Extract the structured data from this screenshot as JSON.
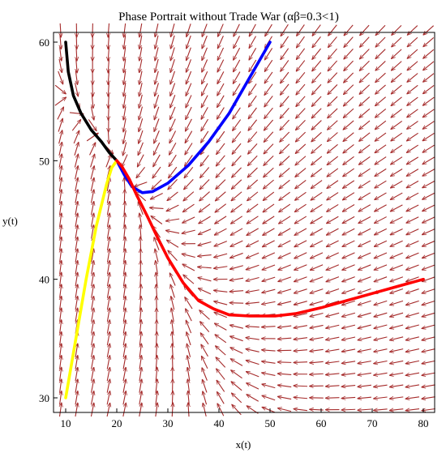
{
  "chart_data": {
    "type": "line",
    "title": "Phase Portrait without Trade War (αβ=0.3<1)",
    "xlabel": "x(t)",
    "ylabel": "y(t)",
    "xlim": [
      10,
      80
    ],
    "ylim": [
      30,
      60
    ],
    "x_ticks": [
      10,
      20,
      30,
      40,
      50,
      60,
      70,
      80
    ],
    "y_ticks": [
      30,
      40,
      50,
      60
    ],
    "grid": false,
    "equilibrium": [
      20,
      50
    ],
    "vector_field": {
      "color": "#a52a2a",
      "x_range": [
        9,
        81
      ],
      "y_range": [
        29,
        61
      ],
      "nx": 24,
      "ny": 33,
      "model": "dx/dt = 0.5x(1 - (x + 0.6y)/50), dy/dt = 0.5y(1 - (y + 0.5x)/60)"
    },
    "series": [
      {
        "color": "#000000",
        "points": [
          [
            10,
            60
          ],
          [
            10.5,
            57.5
          ],
          [
            11.5,
            55.5
          ],
          [
            13,
            54
          ],
          [
            15,
            52.6
          ],
          [
            17,
            51.6
          ],
          [
            18.5,
            50.7
          ],
          [
            20,
            50
          ]
        ]
      },
      {
        "color": "#0000ff",
        "points": [
          [
            50,
            60
          ],
          [
            46,
            57
          ],
          [
            42,
            54
          ],
          [
            38,
            51.6
          ],
          [
            34,
            49.6
          ],
          [
            30,
            48.1
          ],
          [
            27,
            47.4
          ],
          [
            25,
            47.3
          ],
          [
            23,
            47.8
          ],
          [
            21.5,
            48.8
          ],
          [
            20,
            50
          ]
        ]
      },
      {
        "color": "#ffff00",
        "points": [
          [
            10,
            30
          ],
          [
            12,
            35
          ],
          [
            14,
            40
          ],
          [
            16,
            44.5
          ],
          [
            18,
            48
          ],
          [
            19,
            49.4
          ],
          [
            20,
            50
          ]
        ]
      },
      {
        "color": "#ff0000",
        "points": [
          [
            80,
            40
          ],
          [
            75,
            39.4
          ],
          [
            70,
            38.8
          ],
          [
            65,
            38.2
          ],
          [
            60,
            37.6
          ],
          [
            55,
            37.1
          ],
          [
            51,
            36.9
          ],
          [
            46,
            36.9
          ],
          [
            42,
            37
          ],
          [
            39,
            37.5
          ],
          [
            36,
            38.2
          ],
          [
            33,
            39.7
          ],
          [
            30,
            41.8
          ],
          [
            28,
            43.5
          ],
          [
            26,
            45.3
          ],
          [
            24,
            47
          ],
          [
            22.5,
            48.4
          ],
          [
            21,
            49.5
          ],
          [
            20,
            50
          ]
        ]
      }
    ]
  }
}
